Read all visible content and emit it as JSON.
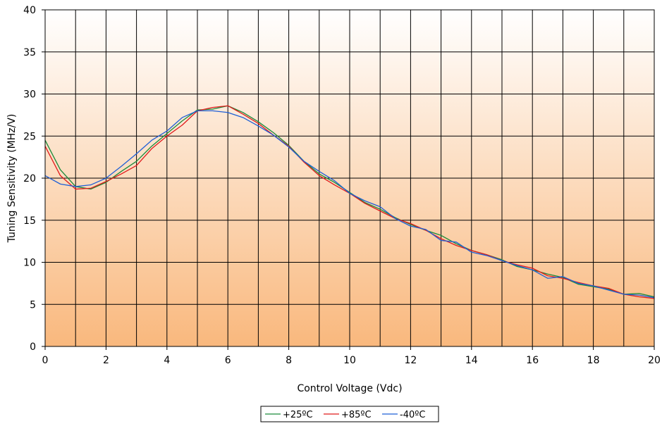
{
  "chart_data": {
    "type": "line",
    "title": "",
    "xlabel": "Control Voltage (Vdc)",
    "ylabel": "Tuning Sensitivity (MHz/V)",
    "xlim": [
      0,
      20
    ],
    "ylim": [
      0,
      40
    ],
    "x_ticks": [
      "0",
      "2",
      "4",
      "6",
      "8",
      "10",
      "12",
      "14",
      "16",
      "18",
      "20"
    ],
    "y_ticks": [
      "0",
      "5",
      "10",
      "15",
      "20",
      "25",
      "30",
      "35",
      "40"
    ],
    "x_grid_step": 1,
    "y_grid_step": 5,
    "grid": true,
    "legend_position": "bottom-center",
    "background_gradient": {
      "top": "#ffffff",
      "bottom": "#f9b87d"
    },
    "series": [
      {
        "name": "+25ºC",
        "color": "#1a8a3a",
        "points": [
          [
            0,
            24.5
          ],
          [
            0.5,
            21
          ],
          [
            1,
            19
          ],
          [
            1.5,
            18.7
          ],
          [
            2,
            19.5
          ],
          [
            2.5,
            20.8
          ],
          [
            3,
            22
          ],
          [
            3.5,
            23.8
          ],
          [
            4,
            25.3
          ],
          [
            4.5,
            26.8
          ],
          [
            5,
            28.1
          ],
          [
            5.5,
            28.2
          ],
          [
            6,
            28.6
          ],
          [
            6.5,
            27.8
          ],
          [
            7,
            26.7
          ],
          [
            7.5,
            25.4
          ],
          [
            8,
            23.9
          ],
          [
            8.5,
            22
          ],
          [
            9,
            20.5
          ],
          [
            9.5,
            19.5
          ],
          [
            10,
            18.3
          ],
          [
            10.5,
            17.1
          ],
          [
            11,
            16.3
          ],
          [
            11.5,
            15.3
          ],
          [
            12,
            14.5
          ],
          [
            12.5,
            13.8
          ],
          [
            13,
            13.2
          ],
          [
            13.5,
            12.2
          ],
          [
            14,
            11.4
          ],
          [
            14.5,
            10.9
          ],
          [
            15,
            10.3
          ],
          [
            15.5,
            9.5
          ],
          [
            16,
            9.1
          ],
          [
            16.5,
            8.6
          ],
          [
            17,
            8.2
          ],
          [
            17.5,
            7.4
          ],
          [
            18,
            7.1
          ],
          [
            18.5,
            6.8
          ],
          [
            19,
            6.2
          ],
          [
            19.5,
            6.3
          ],
          [
            20,
            5.9
          ]
        ]
      },
      {
        "name": "+85ºC",
        "color": "#e01b1b",
        "points": [
          [
            0,
            23.8
          ],
          [
            0.5,
            20.3
          ],
          [
            1,
            18.7
          ],
          [
            1.5,
            18.8
          ],
          [
            2,
            19.6
          ],
          [
            2.5,
            20.5
          ],
          [
            3,
            21.5
          ],
          [
            3.5,
            23.5
          ],
          [
            4,
            25
          ],
          [
            4.5,
            26.3
          ],
          [
            5,
            28
          ],
          [
            5.5,
            28.4
          ],
          [
            6,
            28.6
          ],
          [
            6.5,
            27.6
          ],
          [
            7,
            26.5
          ],
          [
            7.5,
            25.1
          ],
          [
            8,
            23.8
          ],
          [
            8.5,
            21.9
          ],
          [
            9,
            20.3
          ],
          [
            9.5,
            19.2
          ],
          [
            10,
            18.2
          ],
          [
            10.5,
            17
          ],
          [
            11,
            16.1
          ],
          [
            11.5,
            15.2
          ],
          [
            12,
            14.6
          ],
          [
            12.5,
            13.8
          ],
          [
            13,
            12.8
          ],
          [
            13.5,
            12
          ],
          [
            14,
            11.4
          ],
          [
            14.5,
            10.9
          ],
          [
            15,
            10.2
          ],
          [
            15.5,
            9.7
          ],
          [
            16,
            9.3
          ],
          [
            16.5,
            8.4
          ],
          [
            17,
            8.1
          ],
          [
            17.5,
            7.6
          ],
          [
            18,
            7.2
          ],
          [
            18.5,
            6.9
          ],
          [
            19,
            6.2
          ],
          [
            19.5,
            5.9
          ],
          [
            20,
            5.7
          ]
        ]
      },
      {
        "name": "-40ºC",
        "color": "#1f5fd6",
        "points": [
          [
            0,
            20.3
          ],
          [
            0.5,
            19.3
          ],
          [
            1,
            19
          ],
          [
            1.5,
            19.2
          ],
          [
            2,
            20
          ],
          [
            2.5,
            21.4
          ],
          [
            3,
            22.9
          ],
          [
            3.5,
            24.5
          ],
          [
            4,
            25.6
          ],
          [
            4.5,
            27.2
          ],
          [
            5,
            28
          ],
          [
            5.5,
            28
          ],
          [
            6,
            27.8
          ],
          [
            6.5,
            27.2
          ],
          [
            7,
            26.2
          ],
          [
            7.5,
            25.1
          ],
          [
            8,
            23.7
          ],
          [
            8.5,
            22
          ],
          [
            9,
            20.8
          ],
          [
            9.5,
            19.7
          ],
          [
            10,
            18.2
          ],
          [
            10.5,
            17.3
          ],
          [
            11,
            16.6
          ],
          [
            11.5,
            15.2
          ],
          [
            12,
            14.3
          ],
          [
            12.5,
            13.9
          ],
          [
            13,
            12.6
          ],
          [
            13.5,
            12.4
          ],
          [
            14,
            11.2
          ],
          [
            14.5,
            10.8
          ],
          [
            15,
            10.2
          ],
          [
            15.5,
            9.6
          ],
          [
            16,
            9.1
          ],
          [
            16.5,
            8.1
          ],
          [
            17,
            8.3
          ],
          [
            17.5,
            7.5
          ],
          [
            18,
            7.2
          ],
          [
            18.5,
            6.7
          ],
          [
            19,
            6.2
          ],
          [
            19.5,
            6.1
          ],
          [
            20,
            5.8
          ]
        ]
      }
    ]
  }
}
